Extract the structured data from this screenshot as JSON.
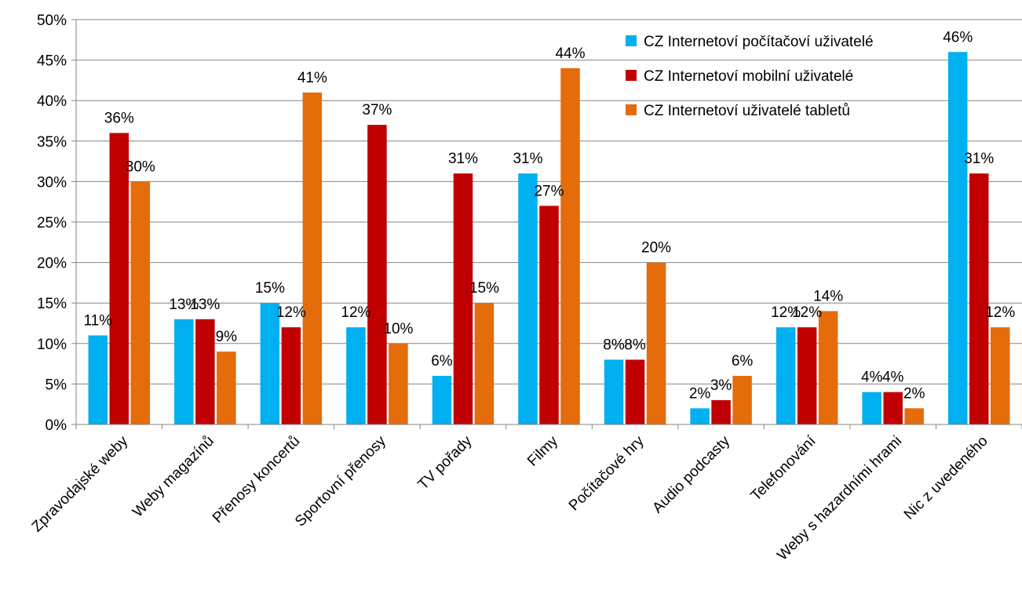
{
  "chart_data": {
    "type": "bar",
    "title": "",
    "xlabel": "",
    "ylabel": "",
    "ylim": [
      0,
      50
    ],
    "y_ticks": [
      "0%",
      "5%",
      "10%",
      "15%",
      "20%",
      "25%",
      "30%",
      "35%",
      "40%",
      "45%",
      "50%"
    ],
    "grid": true,
    "legend_position": "top-right",
    "categories": [
      "Zpravodajské weby",
      "Weby magazínů",
      "Přenosy koncertů",
      "Sportovní přenosy",
      "TV pořady",
      "Filmy",
      "Počítačové hry",
      "Audio podcasty",
      "Telefonování",
      "Weby s hazardními hrami",
      "Nic z uvedeného"
    ],
    "series": [
      {
        "name": "CZ Internetoví počítačoví  uživatelé",
        "color": "#00b0f0",
        "values": [
          11,
          13,
          15,
          12,
          6,
          31,
          8,
          2,
          12,
          4,
          46
        ],
        "labels": [
          "11%",
          "13%",
          "15%",
          "12%",
          "6%",
          "31%",
          "8%",
          "2%",
          "12%",
          "4%",
          "46%"
        ]
      },
      {
        "name": "CZ Internetoví mobilní uživatelé",
        "color": "#c00000",
        "values": [
          36,
          13,
          12,
          37,
          31,
          27,
          8,
          3,
          12,
          4,
          31
        ],
        "labels": [
          "36%",
          "13%",
          "12%",
          "37%",
          "31%",
          "27%",
          "8%",
          "3%",
          "12%",
          "4%",
          "31%"
        ]
      },
      {
        "name": "CZ Internetoví uživatelé tabletů",
        "color": "#e46c0a",
        "values": [
          30,
          9,
          41,
          10,
          15,
          44,
          20,
          6,
          14,
          2,
          12
        ],
        "labels": [
          "30%",
          "9%",
          "41%",
          "10%",
          "15%",
          "44%",
          "20%",
          "6%",
          "14%",
          "2%",
          "12%"
        ]
      }
    ]
  }
}
